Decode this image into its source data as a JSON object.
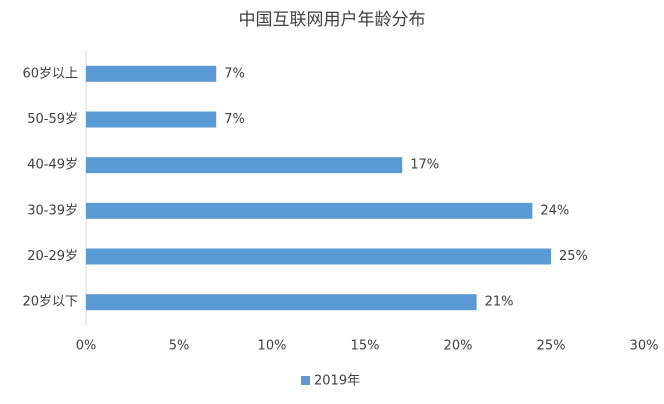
{
  "chart_data": {
    "type": "barh",
    "title": "中国互联网用户年龄分布",
    "categories": [
      "60岁以上",
      "50-59岁",
      "40-49岁",
      "30-39岁",
      "20-29岁",
      "20岁以下"
    ],
    "series": [
      {
        "name": "2019年",
        "color": "#5b9bd5",
        "values": [
          7,
          7,
          17,
          24,
          25,
          21
        ],
        "value_labels": [
          "7%",
          "7%",
          "17%",
          "24%",
          "25%",
          "21%"
        ]
      }
    ],
    "xlim": [
      0,
      30
    ],
    "xticks": [
      {
        "value": 0,
        "label": "0%"
      },
      {
        "value": 5,
        "label": "5%"
      },
      {
        "value": 10,
        "label": "10%"
      },
      {
        "value": 15,
        "label": "15%"
      },
      {
        "value": 20,
        "label": "20%"
      },
      {
        "value": 25,
        "label": "25%"
      },
      {
        "value": 30,
        "label": "30%"
      }
    ],
    "grid": false,
    "legend": "bottom"
  }
}
